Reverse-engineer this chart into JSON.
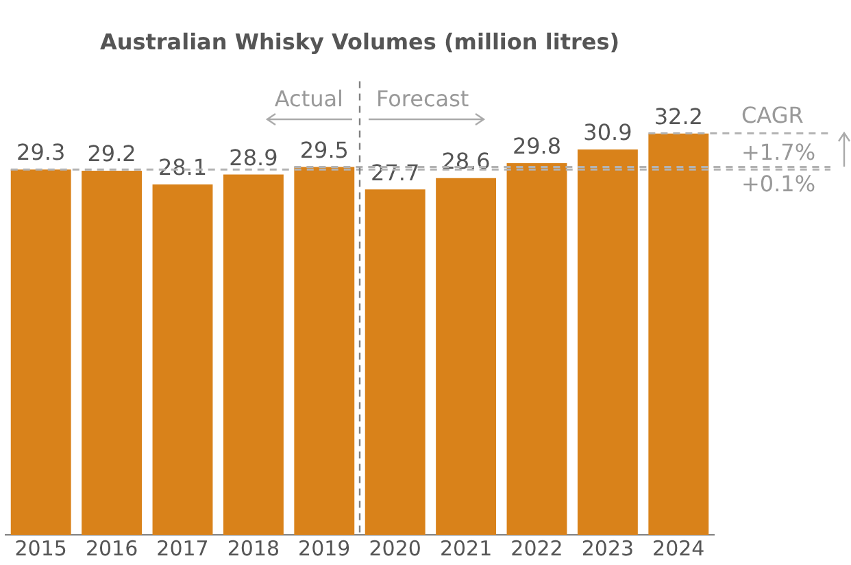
{
  "chart_data": {
    "type": "bar",
    "title": "Australian Whisky Volumes (million litres)",
    "categories": [
      "2015",
      "2016",
      "2017",
      "2018",
      "2019",
      "2020",
      "2021",
      "2022",
      "2023",
      "2024"
    ],
    "values": [
      29.3,
      29.2,
      28.1,
      28.9,
      29.5,
      27.7,
      28.6,
      29.8,
      30.9,
      32.2
    ],
    "color": "#d9821a",
    "data_labels": true,
    "grid": false,
    "legend": false,
    "tick_labels": "x",
    "ref_lines": [
      {
        "axis": "y",
        "value": 32.2,
        "color": "#b3b3b3",
        "line_style": "dashed"
      },
      {
        "axis": "y",
        "value": 29.5,
        "color": "#b3b3b3",
        "line_style": "dashed"
      },
      {
        "axis": "y",
        "value": 29.3,
        "color": "#b3b3b3",
        "line_style": "dashed"
      }
    ],
    "annotations": [
      "Actual",
      "Forecast",
      "CAGR",
      "+1.7%",
      "+0.1%"
    ]
  }
}
